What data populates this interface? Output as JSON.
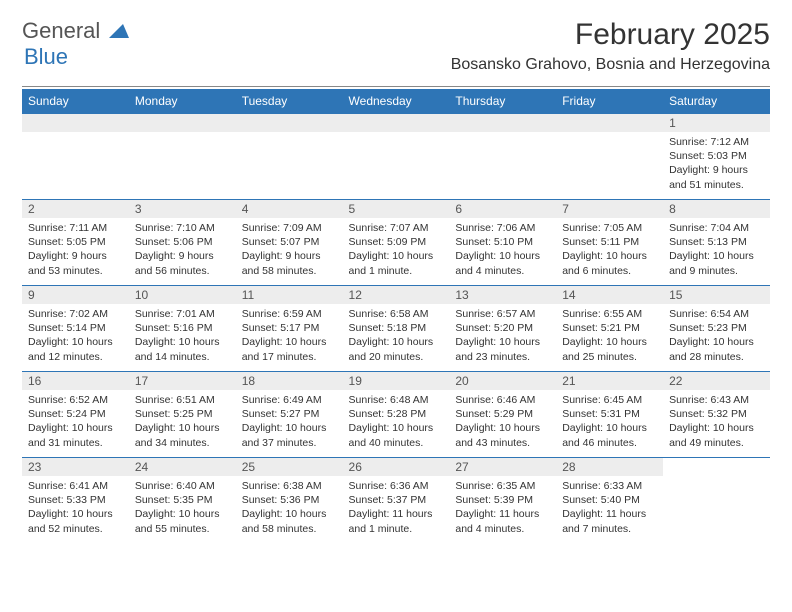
{
  "logo": {
    "name": "General",
    "name2": "Blue"
  },
  "title": "February 2025",
  "location": "Bosansko Grahovo, Bosnia and Herzegovina",
  "colors": {
    "header_bg": "#2e75b6",
    "header_fg": "#ffffff",
    "cell_bg": "#ededed",
    "divider": "#2e75b6"
  },
  "fonts": {
    "title_size": 30,
    "location_size": 16,
    "header_size": 12,
    "cell_size": 10.5
  },
  "day_headers": [
    "Sunday",
    "Monday",
    "Tuesday",
    "Wednesday",
    "Thursday",
    "Friday",
    "Saturday"
  ],
  "weeks": [
    [
      null,
      null,
      null,
      null,
      null,
      null,
      {
        "d": "1",
        "sr": "Sunrise: 7:12 AM",
        "ss": "Sunset: 5:03 PM",
        "dl1": "Daylight: 9 hours",
        "dl2": "and 51 minutes."
      }
    ],
    [
      {
        "d": "2",
        "sr": "Sunrise: 7:11 AM",
        "ss": "Sunset: 5:05 PM",
        "dl1": "Daylight: 9 hours",
        "dl2": "and 53 minutes."
      },
      {
        "d": "3",
        "sr": "Sunrise: 7:10 AM",
        "ss": "Sunset: 5:06 PM",
        "dl1": "Daylight: 9 hours",
        "dl2": "and 56 minutes."
      },
      {
        "d": "4",
        "sr": "Sunrise: 7:09 AM",
        "ss": "Sunset: 5:07 PM",
        "dl1": "Daylight: 9 hours",
        "dl2": "and 58 minutes."
      },
      {
        "d": "5",
        "sr": "Sunrise: 7:07 AM",
        "ss": "Sunset: 5:09 PM",
        "dl1": "Daylight: 10 hours",
        "dl2": "and 1 minute."
      },
      {
        "d": "6",
        "sr": "Sunrise: 7:06 AM",
        "ss": "Sunset: 5:10 PM",
        "dl1": "Daylight: 10 hours",
        "dl2": "and 4 minutes."
      },
      {
        "d": "7",
        "sr": "Sunrise: 7:05 AM",
        "ss": "Sunset: 5:11 PM",
        "dl1": "Daylight: 10 hours",
        "dl2": "and 6 minutes."
      },
      {
        "d": "8",
        "sr": "Sunrise: 7:04 AM",
        "ss": "Sunset: 5:13 PM",
        "dl1": "Daylight: 10 hours",
        "dl2": "and 9 minutes."
      }
    ],
    [
      {
        "d": "9",
        "sr": "Sunrise: 7:02 AM",
        "ss": "Sunset: 5:14 PM",
        "dl1": "Daylight: 10 hours",
        "dl2": "and 12 minutes."
      },
      {
        "d": "10",
        "sr": "Sunrise: 7:01 AM",
        "ss": "Sunset: 5:16 PM",
        "dl1": "Daylight: 10 hours",
        "dl2": "and 14 minutes."
      },
      {
        "d": "11",
        "sr": "Sunrise: 6:59 AM",
        "ss": "Sunset: 5:17 PM",
        "dl1": "Daylight: 10 hours",
        "dl2": "and 17 minutes."
      },
      {
        "d": "12",
        "sr": "Sunrise: 6:58 AM",
        "ss": "Sunset: 5:18 PM",
        "dl1": "Daylight: 10 hours",
        "dl2": "and 20 minutes."
      },
      {
        "d": "13",
        "sr": "Sunrise: 6:57 AM",
        "ss": "Sunset: 5:20 PM",
        "dl1": "Daylight: 10 hours",
        "dl2": "and 23 minutes."
      },
      {
        "d": "14",
        "sr": "Sunrise: 6:55 AM",
        "ss": "Sunset: 5:21 PM",
        "dl1": "Daylight: 10 hours",
        "dl2": "and 25 minutes."
      },
      {
        "d": "15",
        "sr": "Sunrise: 6:54 AM",
        "ss": "Sunset: 5:23 PM",
        "dl1": "Daylight: 10 hours",
        "dl2": "and 28 minutes."
      }
    ],
    [
      {
        "d": "16",
        "sr": "Sunrise: 6:52 AM",
        "ss": "Sunset: 5:24 PM",
        "dl1": "Daylight: 10 hours",
        "dl2": "and 31 minutes."
      },
      {
        "d": "17",
        "sr": "Sunrise: 6:51 AM",
        "ss": "Sunset: 5:25 PM",
        "dl1": "Daylight: 10 hours",
        "dl2": "and 34 minutes."
      },
      {
        "d": "18",
        "sr": "Sunrise: 6:49 AM",
        "ss": "Sunset: 5:27 PM",
        "dl1": "Daylight: 10 hours",
        "dl2": "and 37 minutes."
      },
      {
        "d": "19",
        "sr": "Sunrise: 6:48 AM",
        "ss": "Sunset: 5:28 PM",
        "dl1": "Daylight: 10 hours",
        "dl2": "and 40 minutes."
      },
      {
        "d": "20",
        "sr": "Sunrise: 6:46 AM",
        "ss": "Sunset: 5:29 PM",
        "dl1": "Daylight: 10 hours",
        "dl2": "and 43 minutes."
      },
      {
        "d": "21",
        "sr": "Sunrise: 6:45 AM",
        "ss": "Sunset: 5:31 PM",
        "dl1": "Daylight: 10 hours",
        "dl2": "and 46 minutes."
      },
      {
        "d": "22",
        "sr": "Sunrise: 6:43 AM",
        "ss": "Sunset: 5:32 PM",
        "dl1": "Daylight: 10 hours",
        "dl2": "and 49 minutes."
      }
    ],
    [
      {
        "d": "23",
        "sr": "Sunrise: 6:41 AM",
        "ss": "Sunset: 5:33 PM",
        "dl1": "Daylight: 10 hours",
        "dl2": "and 52 minutes."
      },
      {
        "d": "24",
        "sr": "Sunrise: 6:40 AM",
        "ss": "Sunset: 5:35 PM",
        "dl1": "Daylight: 10 hours",
        "dl2": "and 55 minutes."
      },
      {
        "d": "25",
        "sr": "Sunrise: 6:38 AM",
        "ss": "Sunset: 5:36 PM",
        "dl1": "Daylight: 10 hours",
        "dl2": "and 58 minutes."
      },
      {
        "d": "26",
        "sr": "Sunrise: 6:36 AM",
        "ss": "Sunset: 5:37 PM",
        "dl1": "Daylight: 11 hours",
        "dl2": "and 1 minute."
      },
      {
        "d": "27",
        "sr": "Sunrise: 6:35 AM",
        "ss": "Sunset: 5:39 PM",
        "dl1": "Daylight: 11 hours",
        "dl2": "and 4 minutes."
      },
      {
        "d": "28",
        "sr": "Sunrise: 6:33 AM",
        "ss": "Sunset: 5:40 PM",
        "dl1": "Daylight: 11 hours",
        "dl2": "and 7 minutes."
      },
      null
    ]
  ]
}
